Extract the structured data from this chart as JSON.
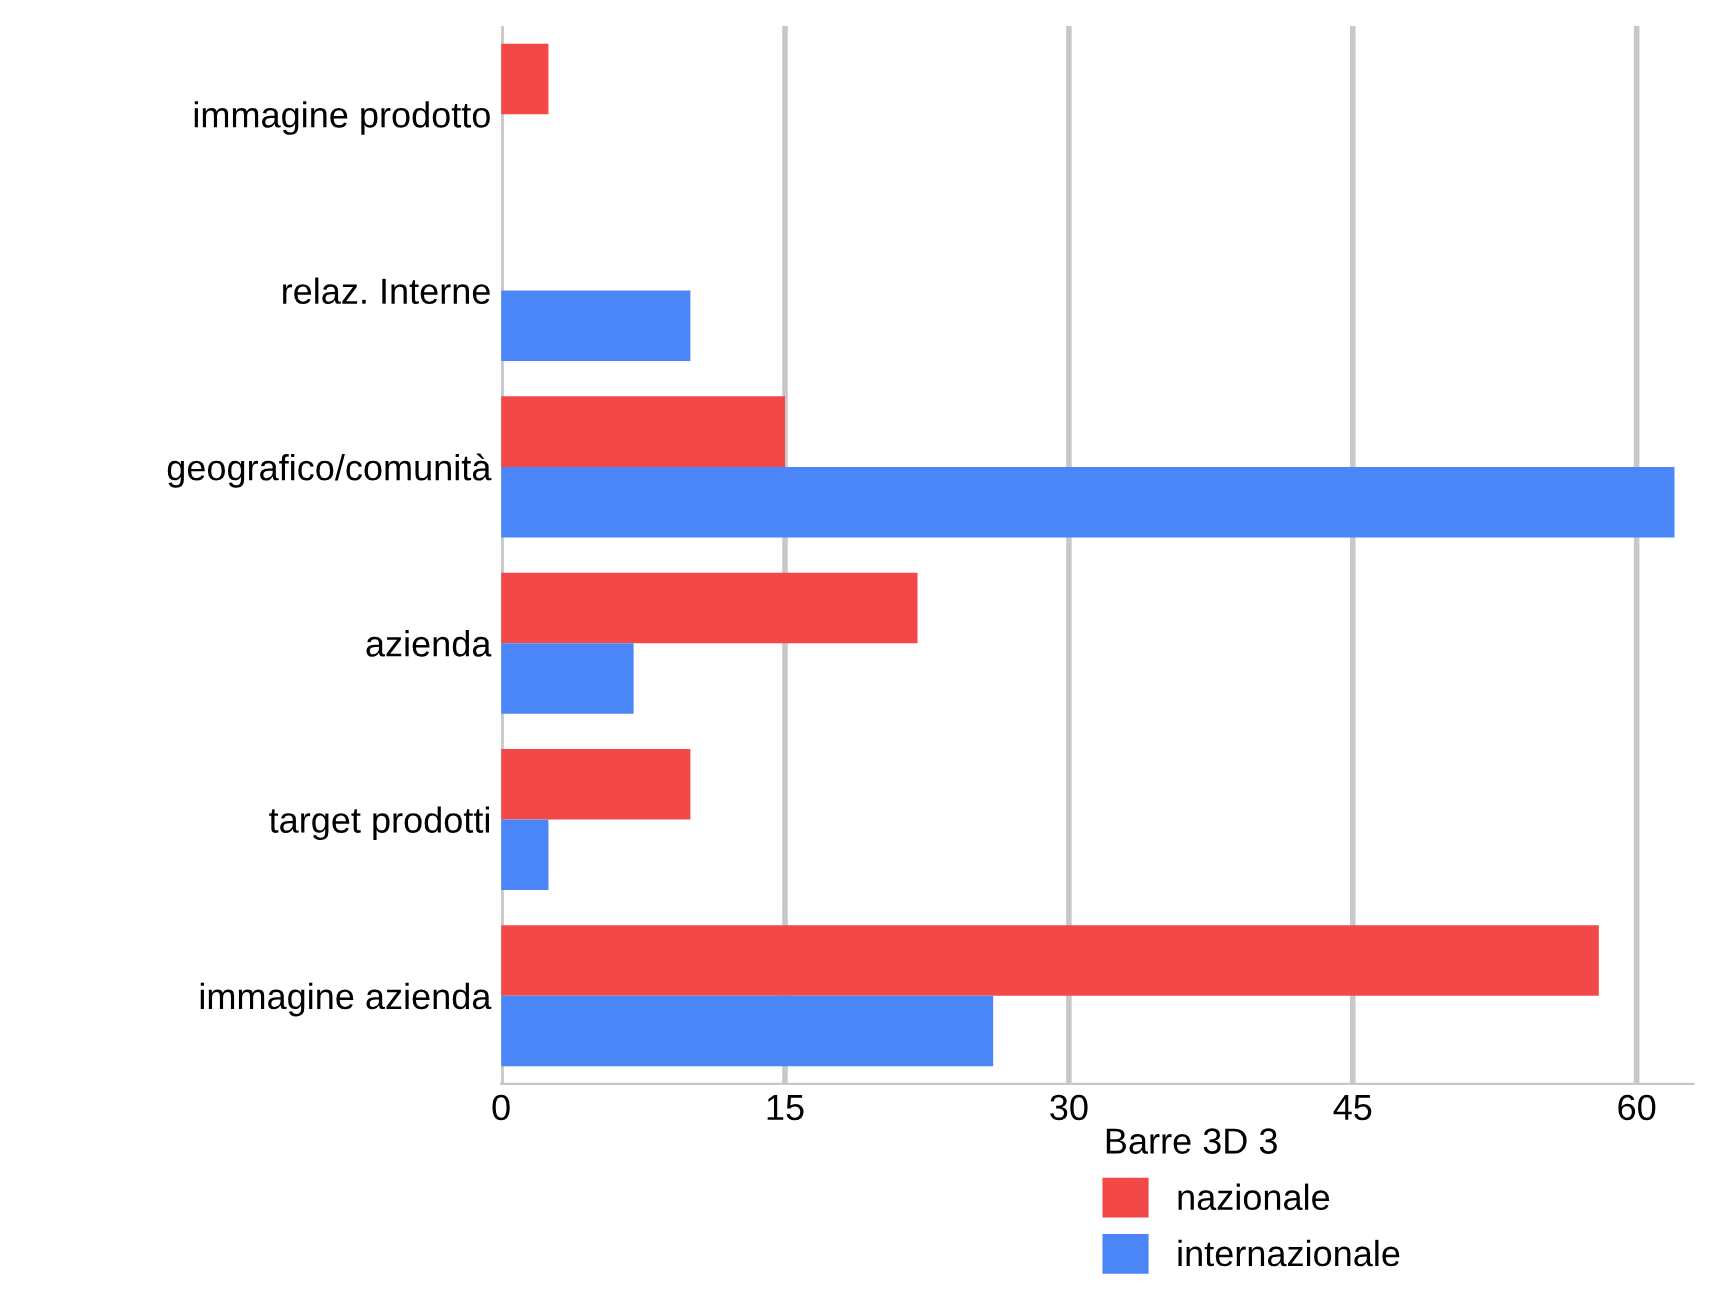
{
  "chart_data": {
    "type": "bar",
    "orientation": "horizontal",
    "categories": [
      "immagine prodotto",
      "relaz. Interne",
      "geografico/comunità",
      "azienda",
      "target prodotti",
      "immagine azienda"
    ],
    "series": [
      {
        "name": "nazionale",
        "color": "#f24848",
        "values": [
          2.5,
          null,
          15,
          22,
          10,
          58
        ]
      },
      {
        "name": "internazionale",
        "color": "#4a86f7",
        "values": [
          null,
          10,
          62,
          7,
          2.5,
          26
        ]
      }
    ],
    "xlim": [
      0,
      63
    ],
    "xticks": [
      0,
      15,
      30,
      45,
      60
    ],
    "grid": "x",
    "legend": "bottom right",
    "legend_title": "Barre 3D 3"
  }
}
